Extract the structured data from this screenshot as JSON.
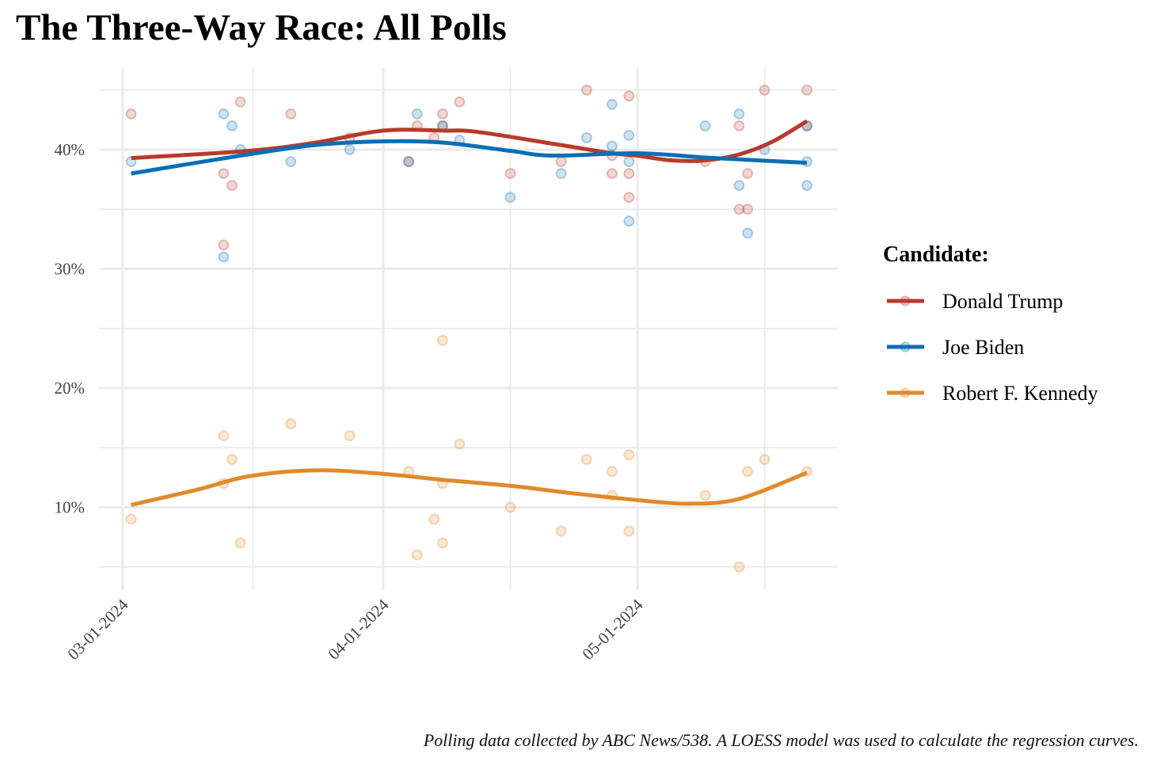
{
  "chart_data": {
    "type": "scatter",
    "title": "The Three-Way Race: All Polls",
    "caption": "Polling data collected by ABC News/538. A LOESS model was used to calculate the regression curves.",
    "xlabel": "",
    "ylabel": "",
    "ylim": [
      3.5,
      46.5
    ],
    "y_ticks": [
      {
        "value": 10,
        "label": "10%"
      },
      {
        "value": 20,
        "label": "20%"
      },
      {
        "value": 30,
        "label": "30%"
      },
      {
        "value": 40,
        "label": "40%"
      }
    ],
    "x_ticks": [
      {
        "date": "2024-03-01",
        "label": "03-01-2024"
      },
      {
        "date": "2024-04-01",
        "label": "04-01-2024"
      },
      {
        "date": "2024-05-01",
        "label": "05-01-2024"
      }
    ],
    "grid": true,
    "legend": {
      "title": "Candidate:",
      "placement": "right"
    },
    "series": [
      {
        "name": "Donald Trump",
        "color": "#b83a2b",
        "points": [
          [
            "2024-03-02",
            43
          ],
          [
            "2024-03-13",
            38
          ],
          [
            "2024-03-13",
            32
          ],
          [
            "2024-03-14",
            37
          ],
          [
            "2024-03-15",
            44
          ],
          [
            "2024-03-21",
            43
          ],
          [
            "2024-03-28",
            41
          ],
          [
            "2024-04-04",
            39
          ],
          [
            "2024-04-05",
            42
          ],
          [
            "2024-04-07",
            41
          ],
          [
            "2024-04-08",
            43
          ],
          [
            "2024-04-08",
            42
          ],
          [
            "2024-04-10",
            44
          ],
          [
            "2024-04-16",
            38
          ],
          [
            "2024-04-22",
            39
          ],
          [
            "2024-04-25",
            45
          ],
          [
            "2024-04-28",
            38
          ],
          [
            "2024-04-28",
            39.5
          ],
          [
            "2024-04-30",
            44.5
          ],
          [
            "2024-04-30",
            38
          ],
          [
            "2024-04-30",
            36
          ],
          [
            "2024-05-09",
            39
          ],
          [
            "2024-05-13",
            42
          ],
          [
            "2024-05-13",
            35
          ],
          [
            "2024-05-14",
            35
          ],
          [
            "2024-05-14",
            38
          ],
          [
            "2024-05-16",
            45
          ],
          [
            "2024-05-21",
            45
          ],
          [
            "2024-05-21",
            42
          ]
        ],
        "curve": [
          [
            "2024-03-02",
            39.3
          ],
          [
            "2024-03-16",
            39.9
          ],
          [
            "2024-03-24",
            40.6
          ],
          [
            "2024-04-01",
            41.6
          ],
          [
            "2024-04-08",
            41.6
          ],
          [
            "2024-04-12",
            41.5
          ],
          [
            "2024-04-21",
            40.5
          ],
          [
            "2024-04-28",
            39.7
          ],
          [
            "2024-05-01",
            39.5
          ],
          [
            "2024-05-05",
            39.1
          ],
          [
            "2024-05-09",
            39.1
          ],
          [
            "2024-05-13",
            39.6
          ],
          [
            "2024-05-17",
            40.7
          ],
          [
            "2024-05-21",
            42.4
          ]
        ]
      },
      {
        "name": "Joe Biden",
        "color": "#0a6fb5",
        "points": [
          [
            "2024-03-02",
            39
          ],
          [
            "2024-03-13",
            43
          ],
          [
            "2024-03-13",
            31
          ],
          [
            "2024-03-14",
            42
          ],
          [
            "2024-03-15",
            40
          ],
          [
            "2024-03-21",
            39
          ],
          [
            "2024-03-28",
            40
          ],
          [
            "2024-04-04",
            39
          ],
          [
            "2024-04-05",
            43
          ],
          [
            "2024-04-08",
            42
          ],
          [
            "2024-04-10",
            40.8
          ],
          [
            "2024-04-16",
            36
          ],
          [
            "2024-04-22",
            38
          ],
          [
            "2024-04-25",
            41
          ],
          [
            "2024-04-28",
            43.8
          ],
          [
            "2024-04-28",
            40.3
          ],
          [
            "2024-04-30",
            41.2
          ],
          [
            "2024-04-30",
            39
          ],
          [
            "2024-04-30",
            34
          ],
          [
            "2024-05-09",
            42
          ],
          [
            "2024-05-13",
            43
          ],
          [
            "2024-05-13",
            37
          ],
          [
            "2024-05-14",
            33
          ],
          [
            "2024-05-16",
            40
          ],
          [
            "2024-05-21",
            39
          ],
          [
            "2024-05-21",
            37
          ],
          [
            "2024-05-21",
            42
          ]
        ],
        "curve": [
          [
            "2024-03-02",
            38.0
          ],
          [
            "2024-03-15",
            39.5
          ],
          [
            "2024-03-24",
            40.4
          ],
          [
            "2024-04-01",
            40.7
          ],
          [
            "2024-04-08",
            40.6
          ],
          [
            "2024-04-16",
            39.9
          ],
          [
            "2024-04-21",
            39.5
          ],
          [
            "2024-05-01",
            39.7
          ],
          [
            "2024-05-10",
            39.3
          ],
          [
            "2024-05-21",
            38.9
          ]
        ]
      },
      {
        "name": "Robert F. Kennedy",
        "color": "#e08a2c",
        "points": [
          [
            "2024-03-02",
            9
          ],
          [
            "2024-03-13",
            16
          ],
          [
            "2024-03-13",
            12
          ],
          [
            "2024-03-14",
            14
          ],
          [
            "2024-03-15",
            7
          ],
          [
            "2024-03-21",
            17
          ],
          [
            "2024-03-28",
            16
          ],
          [
            "2024-04-04",
            13
          ],
          [
            "2024-04-05",
            6
          ],
          [
            "2024-04-07",
            9
          ],
          [
            "2024-04-08",
            24
          ],
          [
            "2024-04-08",
            12
          ],
          [
            "2024-04-08",
            7
          ],
          [
            "2024-04-10",
            15.3
          ],
          [
            "2024-04-16",
            10
          ],
          [
            "2024-04-22",
            8
          ],
          [
            "2024-04-25",
            14
          ],
          [
            "2024-04-28",
            13
          ],
          [
            "2024-04-28",
            11
          ],
          [
            "2024-04-30",
            14.4
          ],
          [
            "2024-04-30",
            8
          ],
          [
            "2024-05-09",
            11
          ],
          [
            "2024-05-13",
            5
          ],
          [
            "2024-05-14",
            13
          ],
          [
            "2024-05-16",
            14
          ],
          [
            "2024-05-21",
            13
          ]
        ],
        "curve": [
          [
            "2024-03-02",
            10.2
          ],
          [
            "2024-03-10",
            11.5
          ],
          [
            "2024-03-16",
            12.6
          ],
          [
            "2024-03-24",
            13.1
          ],
          [
            "2024-04-01",
            12.8
          ],
          [
            "2024-04-08",
            12.3
          ],
          [
            "2024-04-16",
            11.8
          ],
          [
            "2024-04-23",
            11.2
          ],
          [
            "2024-05-01",
            10.6
          ],
          [
            "2024-05-07",
            10.3
          ],
          [
            "2024-05-13",
            10.7
          ],
          [
            "2024-05-21",
            12.9
          ]
        ]
      }
    ]
  }
}
